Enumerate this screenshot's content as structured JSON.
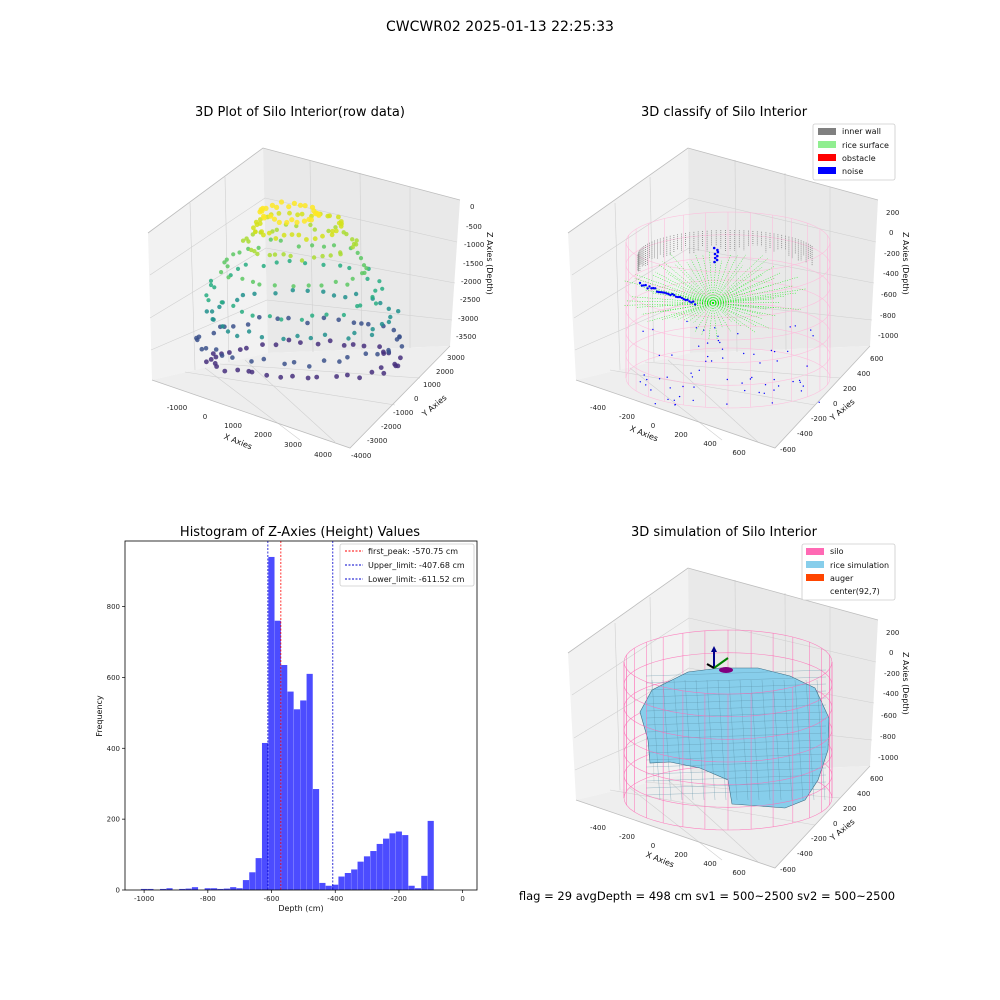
{
  "suptitle": "CWCWR02 2025-01-13 22:25:33",
  "panels": {
    "raw": {
      "title": "3D Plot of Silo Interior(row data)",
      "xlabel": "X Axies",
      "ylabel": "Y Axies",
      "zlabel": "Z Axies (Depth)",
      "xticks": [
        "-1000",
        "0",
        "1000",
        "2000",
        "3000",
        "4000"
      ],
      "yticks": [
        "3000",
        "2000",
        "1000",
        "0",
        "-1000",
        "-2000",
        "-3000",
        "-4000"
      ],
      "zticks": [
        "0",
        "-500",
        "-1000",
        "-1500",
        "-2000",
        "-2500",
        "-3000",
        "-3500"
      ]
    },
    "classify": {
      "title": "3D classify of Silo Interior",
      "xlabel": "X Axies",
      "ylabel": "Y Axies",
      "zlabel": "Z Axies (Depth)",
      "xticks": [
        "-400",
        "-200",
        "0",
        "200",
        "400",
        "600"
      ],
      "yticks": [
        "600",
        "400",
        "200",
        "0",
        "-200",
        "-400",
        "-600"
      ],
      "zticks": [
        "200",
        "0",
        "-200",
        "-400",
        "-600",
        "-800",
        "-1000"
      ],
      "legend": [
        {
          "label": "inner wall",
          "color": "#808080"
        },
        {
          "label": "rice surface",
          "color": "#90ee90"
        },
        {
          "label": "obstacle",
          "color": "#ff0000"
        },
        {
          "label": "noise",
          "color": "#0000ff"
        }
      ]
    },
    "simulation": {
      "title": "3D simulation of Silo Interior",
      "xlabel": "X Axies",
      "ylabel": "Y Axies",
      "zlabel": "Z Axies (Depth)",
      "xticks": [
        "-400",
        "-200",
        "0",
        "200",
        "400",
        "600"
      ],
      "yticks": [
        "600",
        "400",
        "200",
        "0",
        "-200",
        "-400",
        "-600"
      ],
      "zticks": [
        "200",
        "0",
        "-200",
        "-400",
        "-600",
        "-800",
        "-1000"
      ],
      "legend": [
        {
          "label": "silo",
          "color": "#ff69b4"
        },
        {
          "label": "rice simulation",
          "color": "#87ceeb"
        },
        {
          "label": "auger",
          "color": "#ff4500"
        },
        {
          "label": "center(92,7)",
          "color": "none"
        }
      ],
      "status": "flag = 29  avgDepth = 498 cm  sv1 = 500~2500  sv2 = 500~2500"
    }
  },
  "chart_data": {
    "type": "bar",
    "title": "Histogram of Z-Axies (Height) Values",
    "xlabel": "Depth (cm)",
    "ylabel": "Frequency",
    "xlim": [
      -1060,
      45
    ],
    "ylim": [
      0,
      985
    ],
    "xticks": [
      -1000,
      -800,
      -600,
      -400,
      -200,
      0
    ],
    "yticks": [
      0,
      200,
      400,
      600,
      800
    ],
    "bar_color": "#0000ff",
    "bins": {
      "x": [
        -1000,
        -980,
        -960,
        -940,
        -920,
        -900,
        -880,
        -860,
        -840,
        -820,
        -800,
        -780,
        -760,
        -740,
        -720,
        -700,
        -680,
        -660,
        -640,
        -620,
        -600,
        -580,
        -560,
        -540,
        -520,
        -500,
        -480,
        -460,
        -440,
        -420,
        -400,
        -380,
        -360,
        -340,
        -320,
        -300,
        -280,
        -260,
        -240,
        -220,
        -200,
        -180,
        -160,
        -140,
        -120,
        -100,
        -80,
        -60,
        -40,
        -20,
        0
      ],
      "counts": [
        3,
        3,
        0,
        3,
        5,
        0,
        3,
        4,
        8,
        0,
        5,
        5,
        3,
        4,
        8,
        5,
        28,
        50,
        90,
        415,
        940,
        760,
        635,
        560,
        510,
        535,
        610,
        285,
        20,
        12,
        15,
        38,
        48,
        58,
        80,
        95,
        110,
        130,
        145,
        160,
        165,
        155,
        12,
        5,
        40,
        195,
        0,
        0,
        0,
        0,
        0
      ]
    },
    "lines": [
      {
        "label": "first_peak: -570.75 cm",
        "x": -570.75,
        "color": "#ff0000"
      },
      {
        "label": "Upper_limit: -407.68 cm",
        "x": -407.68,
        "color": "#0000cc"
      },
      {
        "label": "Lower_limit: -611.52 cm",
        "x": -611.52,
        "color": "#0000cc"
      }
    ]
  }
}
